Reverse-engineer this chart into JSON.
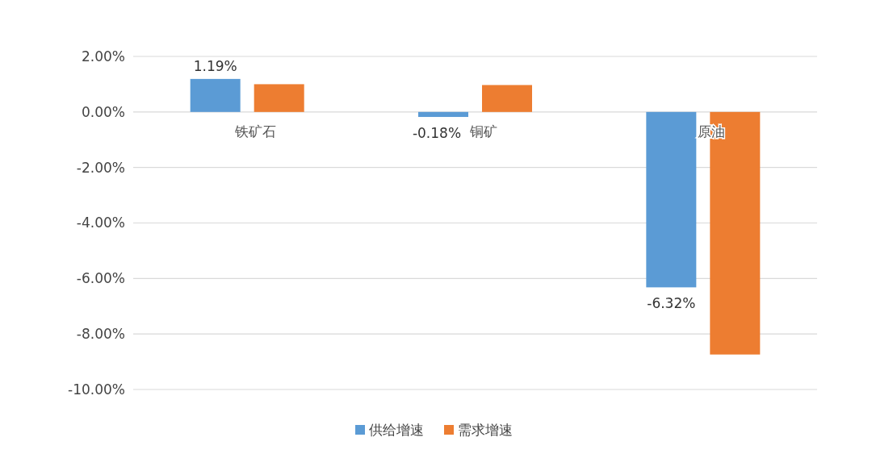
{
  "chart_data": {
    "type": "bar",
    "categories": [
      "铁矿石",
      "铜矿",
      "原油"
    ],
    "series": [
      {
        "name": "供给增速",
        "color": "#5b9bd5",
        "values": [
          1.19,
          -0.18,
          -6.32
        ],
        "value_labels": [
          "1.19%",
          "-0.18%",
          "-6.32%"
        ]
      },
      {
        "name": "需求增速",
        "color": "#ed7d31",
        "values": [
          1.0,
          0.97,
          -8.74
        ]
      }
    ],
    "ylim": [
      -10,
      2
    ],
    "yticks": [
      {
        "value": 2,
        "label": "2.00%"
      },
      {
        "value": 0,
        "label": "0.00%"
      },
      {
        "value": -2,
        "label": "-2.00%"
      },
      {
        "value": -4,
        "label": "-4.00%"
      },
      {
        "value": -6,
        "label": "-6.00%"
      },
      {
        "value": -8,
        "label": "-8.00%"
      },
      {
        "value": -10,
        "label": "-10.00%"
      }
    ],
    "grid": "y",
    "legend": "bottom"
  }
}
